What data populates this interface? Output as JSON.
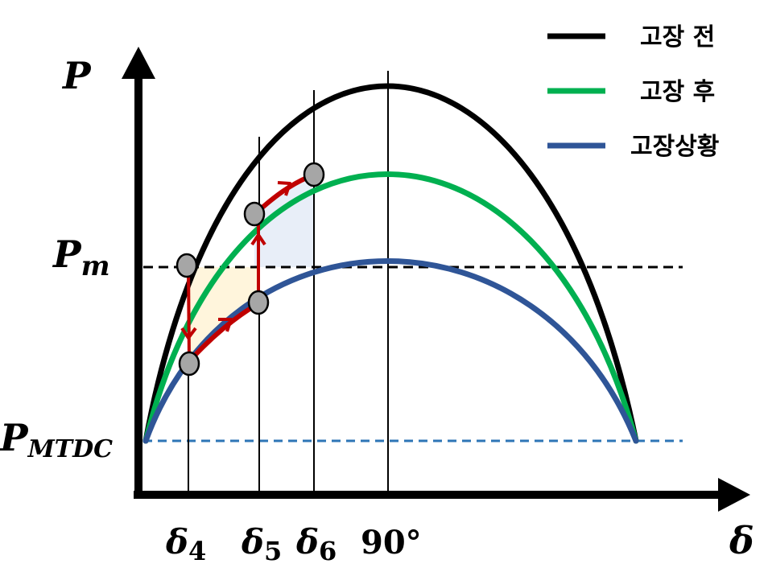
{
  "legend": [
    {
      "label": "고장 전",
      "color": "#000000"
    },
    {
      "label": "고장 후",
      "color": "#00b050"
    },
    {
      "label": "고장상황",
      "color": "#2f5597"
    }
  ],
  "axes": {
    "y_label": "P",
    "x_label": "δ"
  },
  "levels": {
    "pm_main": "P",
    "pm_sub": "m",
    "pmtdc_main": "P",
    "pmtdc_sub": "MTDC"
  },
  "x_ticks": [
    {
      "main": "δ",
      "sub": "4"
    },
    {
      "main": "δ",
      "sub": "5"
    },
    {
      "main": "δ",
      "sub": "6"
    },
    {
      "main": "90°",
      "sub": ""
    }
  ],
  "colors": {
    "pre_fault": "#000000",
    "post_fault": "#00b050",
    "during_fault": "#2f5597",
    "trajectory": "#c00000",
    "marker_fill": "#a6a6a6",
    "accel_area": "#fff5dc",
    "decel_area": "#e8eef8",
    "pm_line": "#000000",
    "pmtdc_line": "#2e75b6"
  }
}
